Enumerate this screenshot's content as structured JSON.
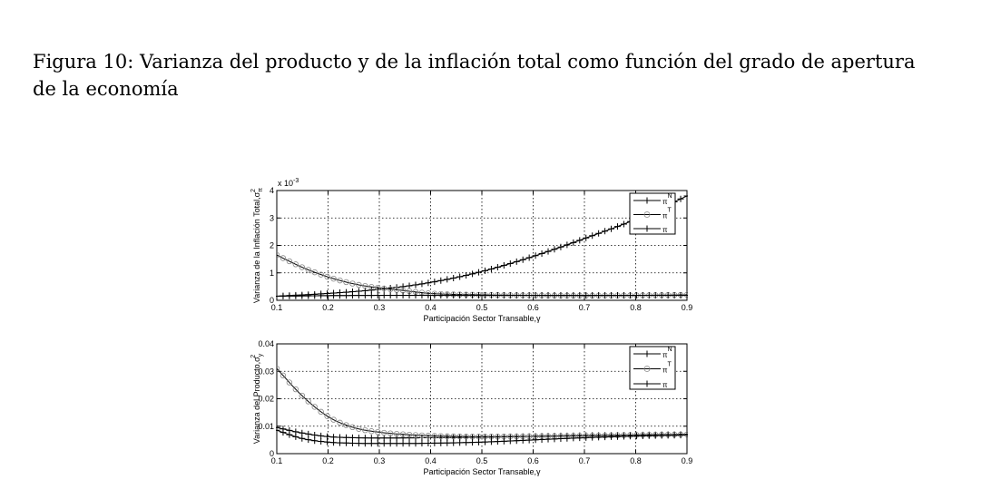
{
  "caption": {
    "label": "Figura 10:",
    "text": "Varianza del producto y de la inflación total como función del grado de apertura de la economía"
  },
  "chart_data": [
    {
      "type": "line",
      "id": "top",
      "ylabel": "Varianza de la Inflación Total,σ",
      "ylabel_sup": "2",
      "ylabel_sub": "π",
      "xlabel": "Participación Sector Transable,γ",
      "exponent": "x 10",
      "exponent_power": "-3",
      "xlim": [
        0.1,
        0.9
      ],
      "ylim": [
        0,
        4
      ],
      "xticks": [
        "0.1",
        "0.2",
        "0.3",
        "0.4",
        "0.5",
        "0.6",
        "0.7",
        "0.8",
        "0.9"
      ],
      "yticks": [
        "0",
        "1",
        "2",
        "3",
        "4"
      ],
      "grid": true,
      "legend_position": "top-right",
      "series": [
        {
          "name": "π",
          "sup": "N",
          "marker": "plus",
          "x": [
            0.1,
            0.2,
            0.3,
            0.4,
            0.5,
            0.6,
            0.7,
            0.8,
            0.9
          ],
          "y": [
            0.15,
            0.25,
            0.4,
            0.65,
            1.05,
            1.6,
            2.25,
            2.95,
            3.8
          ]
        },
        {
          "name": "π",
          "sup": "T",
          "marker": "circle",
          "x": [
            0.1,
            0.15,
            0.2,
            0.25,
            0.3,
            0.35,
            0.4,
            0.5,
            0.6,
            0.7,
            0.8,
            0.9
          ],
          "y": [
            1.65,
            1.2,
            0.85,
            0.6,
            0.45,
            0.35,
            0.25,
            0.2,
            0.18,
            0.17,
            0.18,
            0.2
          ]
        },
        {
          "name": "π",
          "sup": "",
          "marker": "plus",
          "x": [
            0.1,
            0.2,
            0.3,
            0.4,
            0.5,
            0.6,
            0.7,
            0.8,
            0.9
          ],
          "y": [
            0.15,
            0.17,
            0.18,
            0.18,
            0.18,
            0.18,
            0.18,
            0.18,
            0.18
          ]
        }
      ]
    },
    {
      "type": "line",
      "id": "bottom",
      "ylabel": "Varianza del Producto,σ",
      "ylabel_sup": "2",
      "ylabel_sub": "y",
      "xlabel": "Participación Sector Transable,γ",
      "xlim": [
        0.1,
        0.9
      ],
      "ylim": [
        0,
        0.04
      ],
      "xticks": [
        "0.1",
        "0.2",
        "0.3",
        "0.4",
        "0.5",
        "0.6",
        "0.7",
        "0.8",
        "0.9"
      ],
      "yticks": [
        "0",
        "0.01",
        "0.02",
        "0.03",
        "0.04"
      ],
      "grid": true,
      "legend_position": "top-right",
      "series": [
        {
          "name": "π",
          "sup": "N",
          "marker": "plus",
          "x": [
            0.1,
            0.15,
            0.2,
            0.25,
            0.3,
            0.4,
            0.5,
            0.6,
            0.7,
            0.8,
            0.9
          ],
          "y": [
            0.0095,
            0.0075,
            0.0062,
            0.0058,
            0.0057,
            0.0058,
            0.006,
            0.0063,
            0.0066,
            0.0068,
            0.007
          ]
        },
        {
          "name": "π",
          "sup": "T",
          "marker": "circle",
          "x": [
            0.1,
            0.15,
            0.2,
            0.25,
            0.3,
            0.35,
            0.4,
            0.5,
            0.6,
            0.7,
            0.8,
            0.9
          ],
          "y": [
            0.031,
            0.021,
            0.0135,
            0.0095,
            0.0078,
            0.007,
            0.0065,
            0.0062,
            0.0063,
            0.0065,
            0.0068,
            0.007
          ]
        },
        {
          "name": "π",
          "sup": "",
          "marker": "plus",
          "x": [
            0.1,
            0.15,
            0.2,
            0.25,
            0.3,
            0.35,
            0.4,
            0.5,
            0.6,
            0.7,
            0.8,
            0.9
          ],
          "y": [
            0.0085,
            0.0055,
            0.0042,
            0.0038,
            0.0037,
            0.0037,
            0.0038,
            0.0042,
            0.005,
            0.0058,
            0.0064,
            0.0068
          ]
        }
      ]
    }
  ]
}
